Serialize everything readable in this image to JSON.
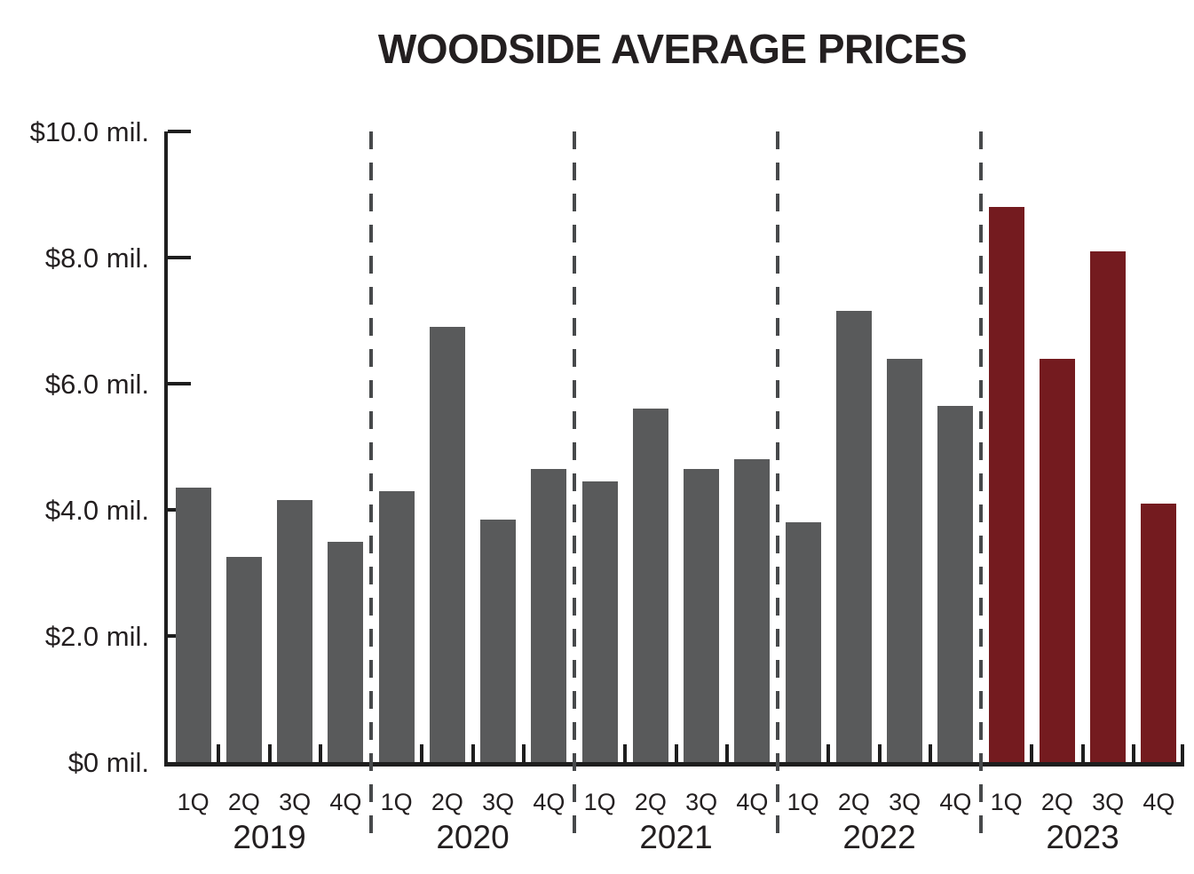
{
  "chart_data": {
    "type": "bar",
    "title": "WOODSIDE AVERAGE PRICES",
    "y_axis": {
      "min": 0,
      "max": 10,
      "ticks": [
        {
          "value": 10,
          "label": "$10.0 mil."
        },
        {
          "value": 8,
          "label": "$8.0 mil."
        },
        {
          "value": 6,
          "label": "$6.0 mil."
        },
        {
          "value": 4,
          "label": "$4.0 mil."
        },
        {
          "value": 2,
          "label": "$2.0 mil."
        },
        {
          "value": 0,
          "label": "$0 mil."
        }
      ]
    },
    "quarter_labels": [
      "1Q",
      "2Q",
      "3Q",
      "4Q"
    ],
    "groups": [
      {
        "year": "2019",
        "values": [
          4.35,
          3.25,
          4.15,
          3.5
        ],
        "highlight": false
      },
      {
        "year": "2020",
        "values": [
          4.3,
          6.9,
          3.85,
          4.65
        ],
        "highlight": false
      },
      {
        "year": "2021",
        "values": [
          4.45,
          5.6,
          4.65,
          4.8
        ],
        "highlight": false
      },
      {
        "year": "2022",
        "values": [
          3.8,
          7.15,
          6.4,
          5.65
        ],
        "highlight": false
      },
      {
        "year": "2023",
        "values": [
          8.8,
          6.4,
          8.1,
          4.1
        ],
        "highlight": true
      }
    ],
    "colors": {
      "bar": "#595a5b",
      "highlight_bar": "#741b1f",
      "axis": "#1e1e1e",
      "separator": "#47494b",
      "text": "#231f20"
    },
    "legend": "none",
    "grid": "none"
  }
}
